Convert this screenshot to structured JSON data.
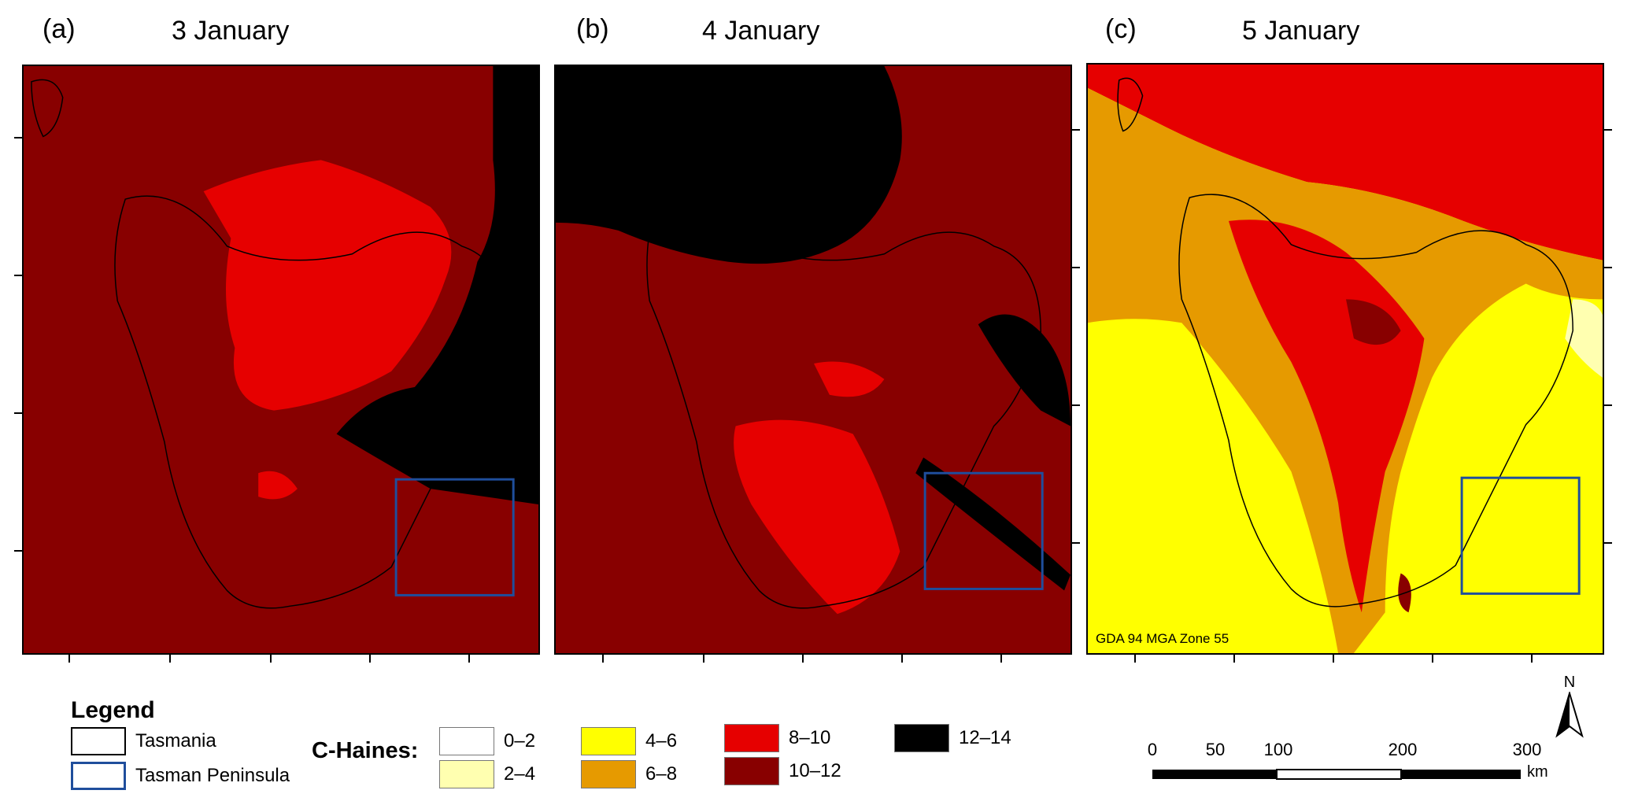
{
  "panels": [
    {
      "letter": "(a)",
      "date": "3 January"
    },
    {
      "letter": "(b)",
      "date": "4 January"
    },
    {
      "letter": "(c)",
      "date": "5 January"
    }
  ],
  "projection_note": "GDA 94 MGA Zone 55",
  "legend": {
    "title": "Legend",
    "outlines": [
      {
        "label": "Tasmania",
        "color": "#000000"
      },
      {
        "label": "Tasman Peninsula",
        "color": "#1f4e9c"
      }
    ],
    "chaines_label": "C-Haines:",
    "classes": [
      {
        "label": "0–2",
        "color": "#ffffff"
      },
      {
        "label": "2–4",
        "color": "#ffffb0"
      },
      {
        "label": "4–6",
        "color": "#ffff00"
      },
      {
        "label": "6–8",
        "color": "#e69a00"
      },
      {
        "label": "8–10",
        "color": "#e60000"
      },
      {
        "label": "10–12",
        "color": "#880000"
      },
      {
        "label": "12–14",
        "color": "#000000"
      }
    ]
  },
  "north_label": "N",
  "scalebar": {
    "ticks": [
      "0",
      "50",
      "100",
      "200",
      "300"
    ],
    "unit": "km"
  }
}
